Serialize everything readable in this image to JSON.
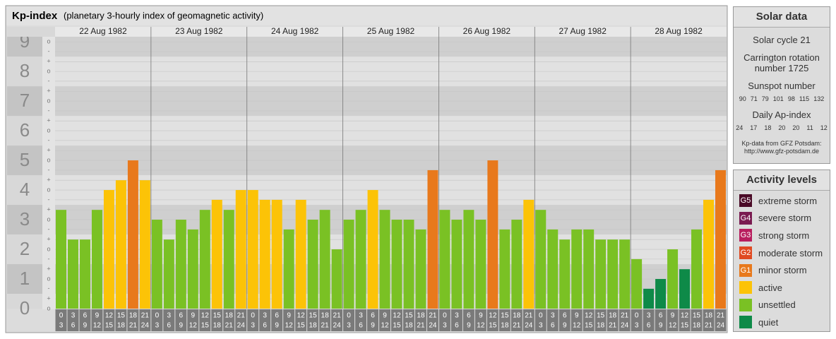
{
  "chart_data": {
    "type": "bar",
    "title": "Kp-index",
    "subtitle": "(planetary 3-hourly index of geomagnetic activity)",
    "ylim": [
      0,
      9.17
    ],
    "yticks": [
      0,
      1,
      2,
      3,
      4,
      5,
      6,
      7,
      8,
      9
    ],
    "minor_yticks": [
      {
        "value": 0,
        "label": "o"
      },
      {
        "value": 0.33,
        "label": "+"
      },
      {
        "value": 0.67,
        "label": "-"
      },
      {
        "value": 1,
        "label": "o"
      },
      {
        "value": 1.33,
        "label": "+"
      },
      {
        "value": 1.67,
        "label": "-"
      },
      {
        "value": 2,
        "label": "o"
      },
      {
        "value": 2.33,
        "label": "+"
      },
      {
        "value": 2.67,
        "label": "-"
      },
      {
        "value": 3,
        "label": "o"
      },
      {
        "value": 3.33,
        "label": "+"
      },
      {
        "value": 3.67,
        "label": "-"
      },
      {
        "value": 4,
        "label": "o"
      },
      {
        "value": 4.33,
        "label": "+"
      },
      {
        "value": 4.67,
        "label": "-"
      },
      {
        "value": 5,
        "label": "o"
      },
      {
        "value": 5.33,
        "label": "+"
      },
      {
        "value": 5.67,
        "label": "-"
      },
      {
        "value": 6,
        "label": "o"
      },
      {
        "value": 6.33,
        "label": "+"
      },
      {
        "value": 6.67,
        "label": "-"
      },
      {
        "value": 7,
        "label": "o"
      },
      {
        "value": 7.33,
        "label": "+"
      },
      {
        "value": 7.67,
        "label": "-"
      },
      {
        "value": 8,
        "label": "o"
      },
      {
        "value": 8.33,
        "label": "+"
      },
      {
        "value": 8.67,
        "label": "-"
      },
      {
        "value": 9,
        "label": "o"
      }
    ],
    "slot_starts": [
      "0",
      "3",
      "6",
      "9",
      "12",
      "15",
      "18",
      "21"
    ],
    "slot_ends": [
      "3",
      "6",
      "9",
      "12",
      "15",
      "18",
      "21",
      "24"
    ],
    "days": [
      {
        "date": "22 Aug 1982",
        "values": [
          3.33,
          2.33,
          2.33,
          3.33,
          4,
          4.33,
          5,
          4.33
        ],
        "colors": [
          "#7ac124",
          "#7ac124",
          "#7ac124",
          "#7ac124",
          "#fcc307",
          "#fcc307",
          "#e8791c",
          "#fcc307"
        ]
      },
      {
        "date": "23 Aug 1982",
        "values": [
          3,
          2.33,
          3,
          2.67,
          3.33,
          3.67,
          3.33,
          4
        ],
        "colors": [
          "#7ac124",
          "#7ac124",
          "#7ac124",
          "#7ac124",
          "#7ac124",
          "#fcc307",
          "#7ac124",
          "#fcc307"
        ]
      },
      {
        "date": "24 Aug 1982",
        "values": [
          4,
          3.67,
          3.67,
          2.67,
          3.67,
          3,
          3.33,
          2
        ],
        "colors": [
          "#fcc307",
          "#fcc307",
          "#fcc307",
          "#7ac124",
          "#fcc307",
          "#7ac124",
          "#7ac124",
          "#7ac124"
        ]
      },
      {
        "date": "25 Aug 1982",
        "values": [
          3,
          3.33,
          4,
          3.33,
          3,
          3,
          2.67,
          4.67
        ],
        "colors": [
          "#7ac124",
          "#7ac124",
          "#fcc307",
          "#7ac124",
          "#7ac124",
          "#7ac124",
          "#7ac124",
          "#e8791c"
        ]
      },
      {
        "date": "26 Aug 1982",
        "values": [
          3.33,
          3,
          3.33,
          3,
          5,
          2.67,
          3,
          3.67
        ],
        "colors": [
          "#7ac124",
          "#7ac124",
          "#7ac124",
          "#7ac124",
          "#e8791c",
          "#7ac124",
          "#7ac124",
          "#fcc307"
        ]
      },
      {
        "date": "27 Aug 1982",
        "values": [
          3.33,
          2.67,
          2.33,
          2.67,
          2.67,
          2.33,
          2.33,
          2.33
        ],
        "colors": [
          "#7ac124",
          "#7ac124",
          "#7ac124",
          "#7ac124",
          "#7ac124",
          "#7ac124",
          "#7ac124",
          "#7ac124"
        ]
      },
      {
        "date": "28 Aug 1982",
        "values": [
          1.67,
          0.67,
          1,
          2,
          1.33,
          2.67,
          3.67,
          4.67
        ],
        "colors": [
          "#7ac124",
          "#0e8a48",
          "#0e8a48",
          "#7ac124",
          "#0e8a48",
          "#7ac124",
          "#fcc307",
          "#e8791c"
        ]
      }
    ]
  },
  "solar_data": {
    "title": "Solar data",
    "cycle": "Solar cycle 21",
    "carrington": "Carrington rotation number 1725",
    "sunspot_title": "Sunspot number",
    "sunspot": [
      90,
      71,
      79,
      101,
      98,
      115,
      132
    ],
    "ap_title": "Daily Ap-index",
    "ap": [
      24,
      17,
      18,
      20,
      20,
      11,
      12
    ],
    "source": "Kp-data from GFZ Potsdam:",
    "url": "http://www.gfz-potsdam.de"
  },
  "activity_levels": {
    "title": "Activity levels",
    "items": [
      {
        "badge": "G5",
        "label": "extreme storm",
        "color": "#4a0a26"
      },
      {
        "badge": "G4",
        "label": "severe storm",
        "color": "#7a1b50"
      },
      {
        "badge": "G3",
        "label": "strong storm",
        "color": "#b81e5e"
      },
      {
        "badge": "G2",
        "label": "moderate storm",
        "color": "#e04a22"
      },
      {
        "badge": "G1",
        "label": "minor storm",
        "color": "#e8791c"
      },
      {
        "label": "active",
        "color": "#fcc307"
      },
      {
        "label": "unsettled",
        "color": "#7ac124"
      },
      {
        "label": "quiet",
        "color": "#0e8a48"
      }
    ]
  }
}
